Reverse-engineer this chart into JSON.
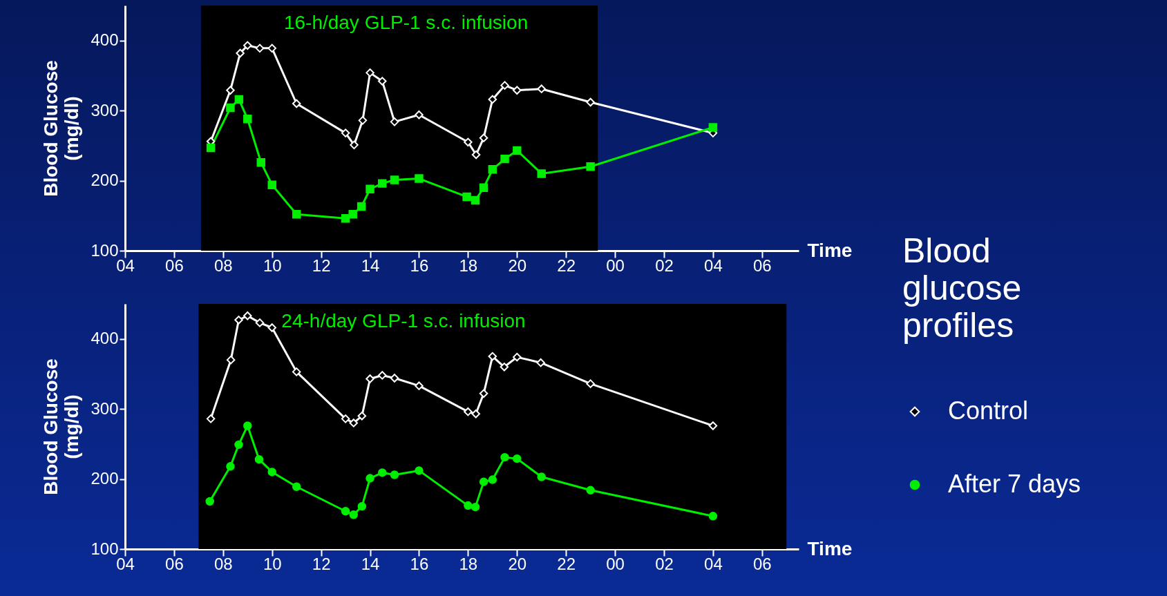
{
  "chart_data": [
    {
      "type": "line",
      "ylabel": "Blood Glucose (mg/dl)",
      "xlabel": "Time",
      "grid": false,
      "xlim": [
        4,
        31.5
      ],
      "ylim": [
        100,
        450
      ],
      "yticks": [
        100,
        200,
        300,
        400
      ],
      "xticks": [
        {
          "value": 4,
          "label": "04"
        },
        {
          "value": 6,
          "label": "06"
        },
        {
          "value": 8,
          "label": "08"
        },
        {
          "value": 10,
          "label": "10"
        },
        {
          "value": 12,
          "label": "12"
        },
        {
          "value": 14,
          "label": "14"
        },
        {
          "value": 16,
          "label": "16"
        },
        {
          "value": 18,
          "label": "18"
        },
        {
          "value": 20,
          "label": "20"
        },
        {
          "value": 22,
          "label": "22"
        },
        {
          "value": 24,
          "label": "00"
        },
        {
          "value": 26,
          "label": "02"
        },
        {
          "value": 28,
          "label": "04"
        },
        {
          "value": 30,
          "label": "06"
        }
      ],
      "bands": [
        {
          "axis": "x",
          "from": 7.1,
          "to": 23.3,
          "label": "16-h/day GLP-1 s.c. infusion",
          "color": "#000000"
        }
      ],
      "series": [
        {
          "color": "#ffffff",
          "marker": "diamond",
          "x": [
            7.5,
            8.3,
            8.7,
            9,
            9.5,
            10,
            11,
            13,
            13.35,
            13.7,
            14,
            14.5,
            15,
            16,
            18,
            18.33,
            18.64,
            19,
            19.5,
            20,
            21,
            23,
            28
          ],
          "values": [
            256,
            329,
            382,
            393,
            389,
            389,
            310,
            268,
            251,
            286,
            354,
            342,
            284,
            294,
            255,
            237,
            261,
            316,
            336,
            329,
            331,
            312,
            268
          ]
        },
        {
          "color": "#00ee00",
          "marker": "square",
          "x": [
            7.5,
            8.3,
            8.65,
            9,
            9.55,
            10,
            11,
            13,
            13.3,
            13.65,
            14,
            14.5,
            15,
            16,
            17.95,
            18.3,
            18.64,
            19,
            19.5,
            20,
            21,
            23,
            28
          ],
          "values": [
            247,
            304,
            316,
            288,
            226,
            194,
            152,
            146,
            152,
            163,
            188,
            196,
            201,
            203,
            177,
            172,
            190,
            216,
            231,
            243,
            210,
            220,
            276
          ]
        }
      ]
    },
    {
      "type": "line",
      "ylabel": "Blood Glucose (mg/dl)",
      "xlabel": "Time",
      "legend": "right",
      "legend_title": "Blood glucose profiles",
      "grid": false,
      "xlim": [
        4,
        31.5
      ],
      "ylim": [
        100,
        450
      ],
      "yticks": [
        100,
        200,
        300,
        400
      ],
      "xticks": [
        {
          "value": 4,
          "label": "04"
        },
        {
          "value": 6,
          "label": "06"
        },
        {
          "value": 8,
          "label": "08"
        },
        {
          "value": 10,
          "label": "10"
        },
        {
          "value": 12,
          "label": "12"
        },
        {
          "value": 14,
          "label": "14"
        },
        {
          "value": 16,
          "label": "16"
        },
        {
          "value": 18,
          "label": "18"
        },
        {
          "value": 20,
          "label": "20"
        },
        {
          "value": 22,
          "label": "22"
        },
        {
          "value": 24,
          "label": "00"
        },
        {
          "value": 26,
          "label": "02"
        },
        {
          "value": 28,
          "label": "04"
        },
        {
          "value": 30,
          "label": "06"
        }
      ],
      "bands": [
        {
          "axis": "x",
          "from": 7,
          "to": 31,
          "label": "24-h/day GLP-1 s.c. infusion",
          "color": "#000000"
        }
      ],
      "series": [
        {
          "name": "Control",
          "color": "#ffffff",
          "marker": "diamond",
          "x": [
            7.5,
            8.32,
            8.64,
            9,
            9.5,
            10,
            11,
            13,
            13.33,
            13.67,
            14,
            14.5,
            15,
            16,
            18,
            18.32,
            18.64,
            19,
            19.48,
            20,
            20.97,
            23,
            28
          ],
          "values": [
            286,
            370,
            427,
            433,
            423,
            416,
            353,
            286,
            280,
            290,
            343,
            348,
            344,
            333,
            296,
            293,
            322,
            375,
            360,
            374,
            366,
            336,
            276
          ]
        },
        {
          "name": "After 7 days",
          "color": "#00ee00",
          "marker": "circle",
          "x": [
            7.46,
            8.3,
            8.64,
            9,
            9.47,
            10,
            11,
            13,
            13.33,
            13.67,
            14,
            14.5,
            15,
            16,
            18,
            18.3,
            18.64,
            19,
            19.5,
            20,
            21,
            23,
            28
          ],
          "values": [
            168,
            218,
            249,
            276,
            228,
            210,
            189,
            154,
            149,
            161,
            201,
            209,
            206,
            212,
            162,
            160,
            196,
            199,
            231,
            229,
            203,
            184,
            147
          ]
        }
      ]
    }
  ]
}
